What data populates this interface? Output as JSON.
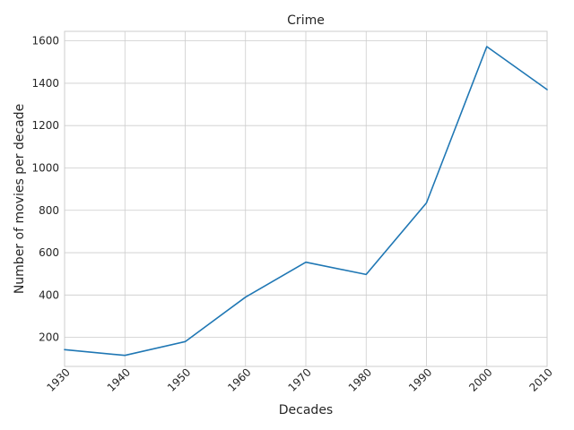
{
  "chart_data": {
    "type": "line",
    "title": "Crime",
    "xlabel": "Decades",
    "ylabel": "Number of movies per decade",
    "x": [
      1930,
      1940,
      1950,
      1960,
      1970,
      1980,
      1990,
      2000,
      2010
    ],
    "series": [
      {
        "values": [
          142,
          115,
          180,
          390,
          555,
          497,
          835,
          1573,
          1370
        ]
      }
    ],
    "xlim": [
      1930,
      2010
    ],
    "ylim": [
      63,
      1645
    ],
    "x_ticks": [
      "1930",
      "1940",
      "1950",
      "1960",
      "1970",
      "1980",
      "1990",
      "2000",
      "2010"
    ],
    "y_ticks": [
      "200",
      "400",
      "600",
      "800",
      "1000",
      "1200",
      "1400",
      "1600"
    ],
    "grid": true,
    "x_tick_rotation": 45,
    "colors": {
      "line": "#1f77b4",
      "grid": "#cccccc",
      "text": "#262626"
    }
  }
}
